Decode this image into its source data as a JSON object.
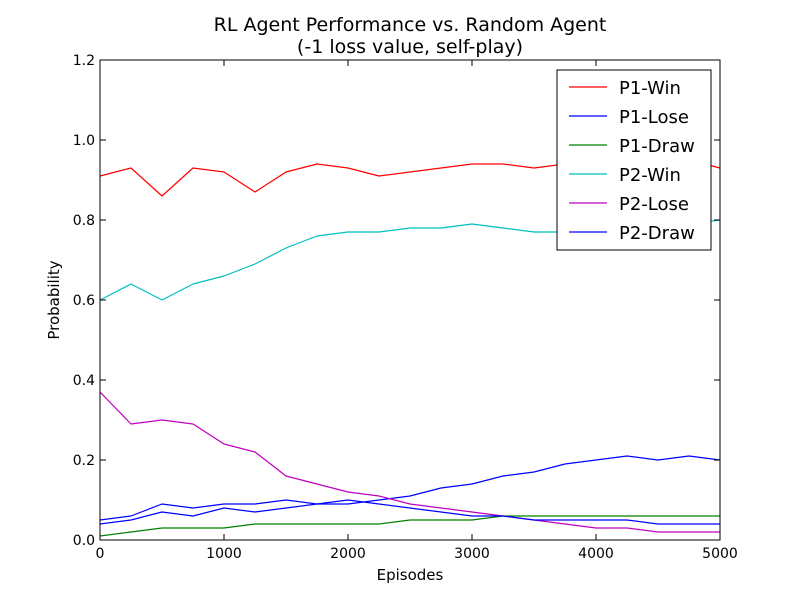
{
  "chart_data": {
    "type": "line",
    "title": "RL Agent Performance vs. Random Agent",
    "subtitle": "(-1 loss value, self-play)",
    "xlabel": "Episodes",
    "ylabel": "Probability",
    "xlim": [
      0,
      5000
    ],
    "ylim": [
      0,
      1.2
    ],
    "x_ticks": [
      0,
      1000,
      2000,
      3000,
      4000,
      5000
    ],
    "x_tick_labels": [
      "0",
      "1000",
      "2000",
      "3000",
      "4000",
      "5000"
    ],
    "y_ticks": [
      0,
      0.2,
      0.4,
      0.6,
      0.8,
      1.0,
      1.2
    ],
    "y_tick_labels": [
      "0.0",
      "0.2",
      "0.4",
      "0.6",
      "0.8",
      "1.0",
      "1.2"
    ],
    "grid": false,
    "legend_position": "top-right",
    "x": [
      0,
      250,
      500,
      750,
      1000,
      1250,
      1500,
      1750,
      2000,
      2250,
      2500,
      2750,
      3000,
      3250,
      3500,
      3750,
      4000,
      4250,
      4500,
      4750,
      5000
    ],
    "series": [
      {
        "name": "P1-Win",
        "color": "#ff0000",
        "values": [
          0.91,
          0.93,
          0.86,
          0.93,
          0.92,
          0.87,
          0.92,
          0.94,
          0.93,
          0.91,
          0.92,
          0.93,
          0.94,
          0.94,
          0.93,
          0.94,
          0.95,
          0.94,
          0.95,
          0.95,
          0.93
        ]
      },
      {
        "name": "P1-Lose",
        "color": "#0000ff",
        "values": [
          0.04,
          0.05,
          0.07,
          0.06,
          0.08,
          0.07,
          0.08,
          0.09,
          0.09,
          0.1,
          0.11,
          0.13,
          0.14,
          0.16,
          0.17,
          0.19,
          0.2,
          0.21,
          0.2,
          0.21,
          0.2
        ]
      },
      {
        "name": "P1-Draw",
        "color": "#008000",
        "values": [
          0.01,
          0.02,
          0.03,
          0.03,
          0.03,
          0.04,
          0.04,
          0.04,
          0.04,
          0.04,
          0.05,
          0.05,
          0.05,
          0.06,
          0.06,
          0.06,
          0.06,
          0.06,
          0.06,
          0.06,
          0.06
        ]
      },
      {
        "name": "P2-Win",
        "color": "#00bfbf",
        "values": [
          0.6,
          0.64,
          0.6,
          0.64,
          0.66,
          0.69,
          0.73,
          0.76,
          0.77,
          0.77,
          0.78,
          0.78,
          0.79,
          0.78,
          0.77,
          0.77,
          0.78,
          0.77,
          0.79,
          0.79,
          0.8
        ]
      },
      {
        "name": "P2-Lose",
        "color": "#bf00bf",
        "values": [
          0.37,
          0.29,
          0.3,
          0.29,
          0.24,
          0.22,
          0.16,
          0.14,
          0.12,
          0.11,
          0.09,
          0.08,
          0.07,
          0.06,
          0.05,
          0.04,
          0.03,
          0.03,
          0.02,
          0.02,
          0.02
        ]
      },
      {
        "name": "P2-Draw",
        "color": "#0000ff",
        "values": [
          0.05,
          0.06,
          0.09,
          0.08,
          0.09,
          0.09,
          0.1,
          0.09,
          0.1,
          0.09,
          0.08,
          0.07,
          0.06,
          0.06,
          0.05,
          0.05,
          0.05,
          0.05,
          0.04,
          0.04,
          0.04
        ]
      }
    ]
  }
}
